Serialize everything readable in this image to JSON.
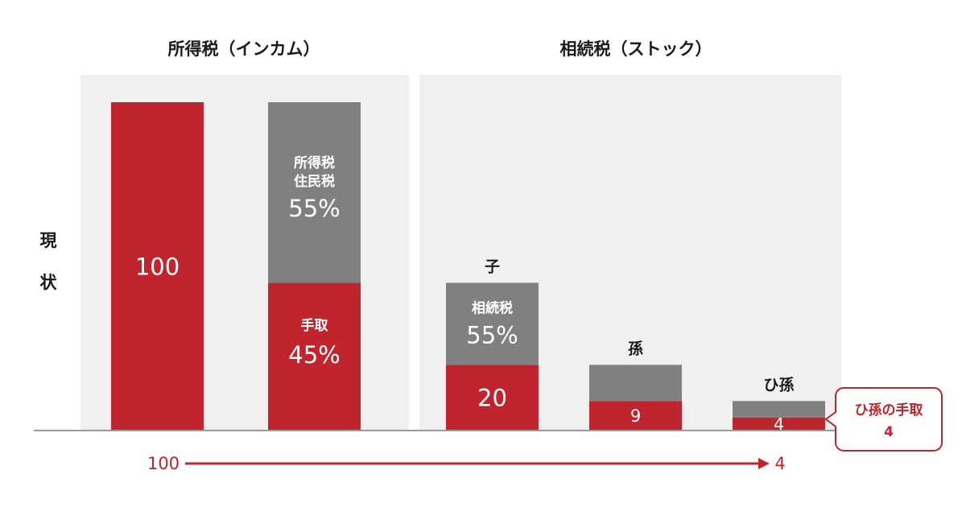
{
  "colors": {
    "tax": "#808080",
    "net": "#c0252d",
    "panel": "#f0f0f0",
    "baseline": "#9a9a9a",
    "label_dark": "#1a1a1a",
    "label_light": "#ffffff"
  },
  "row_label": [
    "現",
    "状"
  ],
  "callout": {
    "line1": "ひ孫の手取",
    "line2": "4"
  },
  "flow": {
    "from": "100",
    "to": "4"
  },
  "chart_data": [
    {
      "type": "bar",
      "title": "所得税（インカム）",
      "ylim": [
        0,
        100
      ],
      "bars": [
        {
          "category": "",
          "top_label": "",
          "net": 100,
          "tax": 0,
          "net_label": "100",
          "tax_label": [],
          "net_caption": ""
        },
        {
          "category": "",
          "top_label": "",
          "net": 45,
          "tax": 55,
          "net_label": "45%",
          "tax_label": [
            "所得税",
            "住民税",
            "55%"
          ],
          "net_caption": "手取"
        }
      ]
    },
    {
      "type": "bar",
      "title": "相続税（ストック）",
      "ylim": [
        0,
        100
      ],
      "bars": [
        {
          "category": "子",
          "top_label": "子",
          "net": 20,
          "tax": 25,
          "net_label": "20",
          "tax_label": [
            "相続税",
            "55%"
          ],
          "net_caption": ""
        },
        {
          "category": "孫",
          "top_label": "孫",
          "net": 9,
          "tax": 11,
          "net_label": "9",
          "tax_label": [],
          "net_caption": ""
        },
        {
          "category": "ひ孫",
          "top_label": "ひ孫",
          "net": 4,
          "tax": 5,
          "net_label": "4",
          "tax_label": [],
          "net_caption": ""
        }
      ]
    }
  ]
}
